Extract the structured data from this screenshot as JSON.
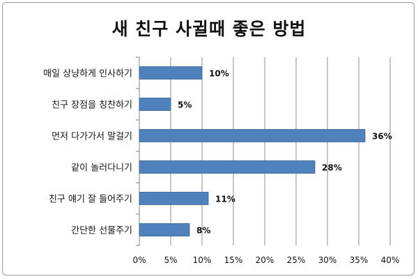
{
  "chart_data": {
    "type": "bar",
    "orientation": "horizontal",
    "title": "새 친구 사귈때 좋은 방법",
    "categories": [
      "매일 상냥하게 인사하기",
      "친구 장점을 칭찬하기",
      "먼저 다가가서 말걸기",
      "같이 놀러다니기",
      "친구 얘기 잘 들어주기",
      "간단한 선물주기"
    ],
    "values": [
      10,
      5,
      36,
      28,
      11,
      8
    ],
    "value_labels": [
      "10%",
      "5%",
      "36%",
      "28%",
      "11%",
      "8%"
    ],
    "xlim": [
      0,
      40
    ],
    "x_ticks": [
      "0%",
      "5%",
      "10%",
      "15%",
      "20%",
      "25%",
      "30%",
      "35%",
      "40%"
    ],
    "xlabel": "",
    "ylabel": "",
    "grid": "vertical",
    "legend": "none",
    "colors": {
      "bar": "#4F81BD",
      "bar_border": "#3A6395",
      "grid": "#8c8c8c",
      "axis": "#7f7f7f",
      "text": "#111111"
    }
  }
}
